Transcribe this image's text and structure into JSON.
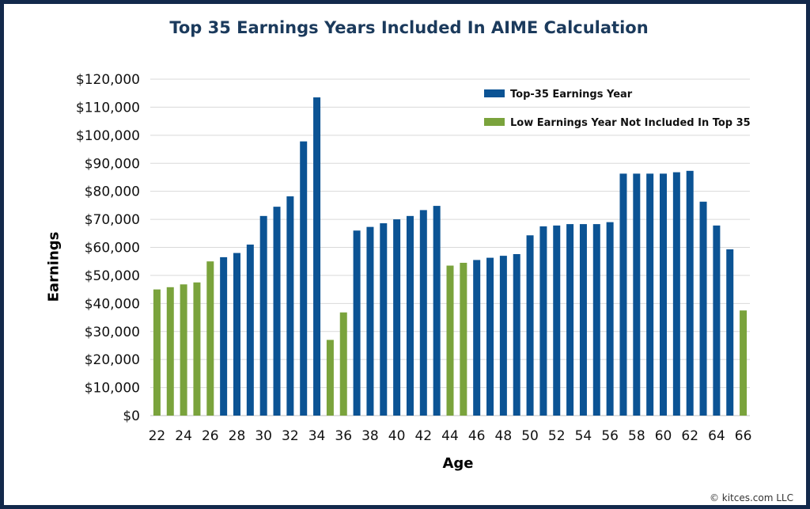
{
  "copyright": "© kitces.com LLC",
  "colors": {
    "frame": "#13294b",
    "title": "#1b3a5c",
    "top35": "#0b5394",
    "excluded": "#7aa33c",
    "grid": "#d9d9d9"
  },
  "chart_data": {
    "type": "bar",
    "title": "Top 35 Earnings Years Included In AIME Calculation",
    "xlabel": "Age",
    "ylabel": "Earnings",
    "ylim": [
      0,
      120000
    ],
    "y_ticks": [
      "$0",
      "$10,000",
      "$20,000",
      "$30,000",
      "$40,000",
      "$50,000",
      "$60,000",
      "$70,000",
      "$80,000",
      "$90,000",
      "$100,000",
      "$110,000",
      "$120,000"
    ],
    "x_tick_labels": [
      "22",
      "24",
      "26",
      "28",
      "30",
      "32",
      "34",
      "36",
      "38",
      "40",
      "42",
      "44",
      "46",
      "48",
      "50",
      "52",
      "54",
      "56",
      "58",
      "60",
      "62",
      "64",
      "66"
    ],
    "grid": "horizontal",
    "legend_position": "top-right",
    "categories": [
      22,
      23,
      24,
      25,
      26,
      27,
      28,
      29,
      30,
      31,
      32,
      33,
      34,
      35,
      36,
      37,
      38,
      39,
      40,
      41,
      42,
      43,
      44,
      45,
      46,
      47,
      48,
      49,
      50,
      51,
      52,
      53,
      54,
      55,
      56,
      57,
      58,
      59,
      60,
      61,
      62,
      63,
      64,
      65,
      66
    ],
    "series": [
      {
        "name": "Top-35 Earnings Year",
        "color": "#0b5394",
        "values": [
          null,
          null,
          null,
          null,
          null,
          56500,
          58000,
          61000,
          71200,
          74500,
          78200,
          97800,
          113500,
          null,
          null,
          66000,
          67300,
          68600,
          70000,
          71200,
          73300,
          74800,
          null,
          null,
          55500,
          56300,
          57000,
          57600,
          64300,
          67500,
          67800,
          68300,
          68300,
          68300,
          69000,
          86300,
          86300,
          86300,
          86300,
          86800,
          87300,
          76300,
          67800,
          59300,
          null
        ]
      },
      {
        "name": "Low Earnings Year Not Included In Top 35",
        "color": "#7aa33c",
        "values": [
          45000,
          45800,
          46800,
          47500,
          55000,
          null,
          null,
          null,
          null,
          null,
          null,
          null,
          null,
          27000,
          36800,
          null,
          null,
          null,
          null,
          null,
          null,
          null,
          53500,
          54500,
          null,
          null,
          null,
          null,
          null,
          null,
          null,
          null,
          null,
          null,
          null,
          null,
          null,
          null,
          null,
          null,
          null,
          null,
          null,
          null,
          37500
        ]
      }
    ]
  }
}
